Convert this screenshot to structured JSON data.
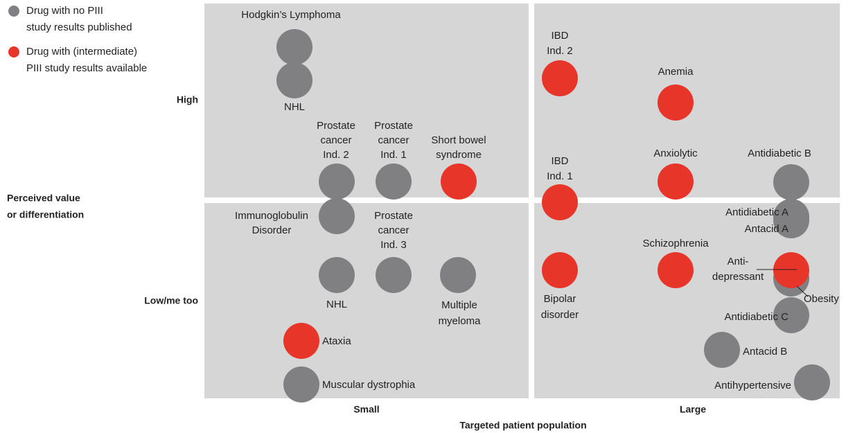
{
  "legend": {
    "items": [
      {
        "lines": [
          "Drug with no PIII",
          "study results published"
        ],
        "color": "#808083"
      },
      {
        "lines": [
          "Drug with (intermediate)",
          "PIII study results available"
        ],
        "color": "#e8352a"
      }
    ]
  },
  "axes": {
    "y_title": [
      "Perceived value",
      "or differentiation"
    ],
    "y_labels": [
      "High",
      "Low/me too"
    ],
    "x_labels": [
      "Small",
      "Large"
    ],
    "x_title": "Targeted patient population"
  },
  "groups": [
    {
      "drugs": [
        {
          "label": [
            "Hodgkin’s Lymphoma"
          ]
        },
        {
          "label": [
            "NHL"
          ]
        },
        {
          "label": [
            "Prostate",
            "cancer",
            "Ind. 2"
          ]
        },
        {
          "label": [
            "Prostate",
            "cancer",
            "Ind. 1"
          ]
        },
        {
          "label": [
            "Immunoglobulin",
            "Disorder"
          ]
        },
        {
          "label": [
            "Prostate",
            "cancer",
            "Ind. 3"
          ]
        },
        {
          "label": [
            "NHL"
          ]
        },
        {
          "label": [
            "Multiple",
            "myeloma"
          ]
        },
        {
          "label": [
            "Muscular dystrophia"
          ]
        },
        {
          "label": [
            "Antidiabetic B"
          ]
        },
        {
          "label": [
            "Antidiabetic A"
          ]
        },
        {
          "label": [
            "Antacid A"
          ]
        },
        {
          "label": [
            "Obesity"
          ]
        },
        {
          "label": [
            "Antidiabetic C"
          ]
        },
        {
          "label": [
            "Antacid B"
          ]
        },
        {
          "label": [
            "Antihypertensive"
          ]
        }
      ]
    },
    {
      "drugs": [
        {
          "label": [
            "Short bowel",
            "syndrome"
          ]
        },
        {
          "label": [
            "Ataxia"
          ]
        },
        {
          "label": [
            "IBD",
            "Ind. 2"
          ]
        },
        {
          "label": [
            "Anemia"
          ]
        },
        {
          "label": [
            "IBD",
            "Ind. 1"
          ]
        },
        {
          "label": [
            "Anxiolytic"
          ]
        },
        {
          "label": [
            "Schizophrenia"
          ]
        },
        {
          "label": [
            "Bipolar",
            "disorder"
          ]
        },
        {
          "label": [
            "Anti-",
            "depressant"
          ]
        }
      ]
    }
  ]
}
